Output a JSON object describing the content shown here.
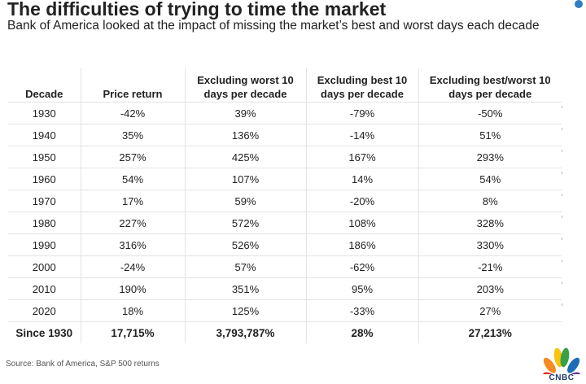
{
  "title": "The difficulties of trying to time the market",
  "subtitle": "Bank of America looked at the impact of missing the market’s best and worst days each decade",
  "source": "Source: Bank of America, S&P 500 returns",
  "logo_text": "CNBC",
  "chart_data": {
    "type": "table",
    "columns": [
      "Decade",
      "Price return",
      "Excluding worst 10 days per decade",
      "Excluding best 10 days per decade",
      "Excluding best/worst 10 days per decade"
    ],
    "rows": [
      [
        "1930",
        "-42%",
        "39%",
        "-79%",
        "-50%"
      ],
      [
        "1940",
        "35%",
        "136%",
        "-14%",
        "51%"
      ],
      [
        "1950",
        "257%",
        "425%",
        "167%",
        "293%"
      ],
      [
        "1960",
        "54%",
        "107%",
        "14%",
        "54%"
      ],
      [
        "1970",
        "17%",
        "59%",
        "-20%",
        "8%"
      ],
      [
        "1980",
        "227%",
        "572%",
        "108%",
        "328%"
      ],
      [
        "1990",
        "316%",
        "526%",
        "186%",
        "330%"
      ],
      [
        "2000",
        "-24%",
        "57%",
        "-62%",
        "-21%"
      ],
      [
        "2010",
        "190%",
        "351%",
        "95%",
        "203%"
      ],
      [
        "2020",
        "18%",
        "125%",
        "-33%",
        "27%"
      ]
    ],
    "total_row": [
      "Since 1930",
      "17,715%",
      "3,793,787%",
      "28%",
      "27,213%"
    ]
  }
}
